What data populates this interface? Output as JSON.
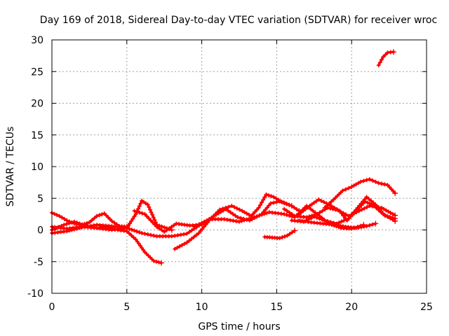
{
  "chart_data": {
    "type": "scatter",
    "title": "Day 169 of 2018, Sidereal Day-to-day VTEC variation (SDTVAR) for receiver wroc",
    "xlabel": "GPS time / hours",
    "ylabel": "SDTVAR / TECUs",
    "xlim": [
      0,
      25
    ],
    "ylim": [
      -10,
      30
    ],
    "xticks": [
      "0",
      "5",
      "10",
      "15",
      "20",
      "25"
    ],
    "yticks": [
      "-10",
      "-5",
      "0",
      "5",
      "10",
      "15",
      "20",
      "25",
      "30"
    ],
    "grid": true,
    "marker": "plus",
    "color": "#ff0000",
    "series": [
      {
        "name": "s1",
        "x": [
          0,
          0.5,
          1,
          1.5,
          2,
          2.5,
          3,
          3.5,
          4,
          4.5,
          5
        ],
        "y": [
          2.7,
          2.2,
          1.5,
          1.0,
          0.8,
          1.2,
          2.2,
          2.6,
          1.4,
          0.6,
          0.5
        ]
      },
      {
        "name": "s2",
        "x": [
          0,
          0.8,
          1.5,
          2.2,
          3,
          3.7,
          4.4,
          5,
          5.6,
          6.2,
          6.8,
          7.3
        ],
        "y": [
          0.0,
          0.8,
          1.3,
          0.7,
          0.3,
          0.5,
          0.0,
          -0.2,
          -1.5,
          -3.5,
          -4.9,
          -5.2
        ]
      },
      {
        "name": "s3",
        "x": [
          0,
          1,
          2,
          3,
          4,
          5,
          5.6,
          6,
          6.4,
          7,
          8
        ],
        "y": [
          -0.5,
          -0.2,
          0.4,
          0.8,
          0.6,
          0.3,
          2.5,
          4.6,
          4.0,
          0.8,
          0.0
        ]
      },
      {
        "name": "s4",
        "x": [
          0,
          1,
          2,
          3,
          4,
          5,
          6,
          7,
          8,
          9,
          10
        ],
        "y": [
          0.5,
          0.2,
          0.5,
          0.3,
          0.0,
          0.3,
          -0.5,
          -1.0,
          -1.0,
          -0.6,
          1.0
        ]
      },
      {
        "name": "s5",
        "x": [
          5.5,
          6.2,
          7,
          7.5,
          8.3,
          9.2,
          10,
          10.8,
          11.6,
          12.4,
          13.2,
          14,
          14.6,
          15.2,
          16
        ],
        "y": [
          3.0,
          2.5,
          0.5,
          -0.3,
          1.0,
          0.7,
          0.8,
          2.2,
          3.3,
          2.0,
          1.5,
          2.5,
          4.2,
          4.5,
          3.8
        ]
      },
      {
        "name": "s6",
        "x": [
          8.2,
          9,
          9.8,
          10.5,
          11.2,
          12,
          12.7,
          13.3,
          13.8,
          14.3,
          14.8,
          15.3,
          16,
          16.5
        ],
        "y": [
          -3.0,
          -2.0,
          -0.5,
          1.5,
          3.2,
          3.8,
          3.0,
          2.2,
          3.5,
          5.6,
          5.2,
          4.5,
          3.8,
          3.0
        ]
      },
      {
        "name": "s7",
        "x": [
          9.5,
          10.5,
          11.5,
          12.5,
          13.5,
          14.5,
          15.5,
          16.2,
          17,
          17.7,
          18.5,
          19.3,
          20,
          20.8
        ],
        "y": [
          0.5,
          1.7,
          1.7,
          1.3,
          2.0,
          2.8,
          2.5,
          2.0,
          3.8,
          2.5,
          1.0,
          0.3,
          0.2,
          0.8
        ]
      },
      {
        "name": "s8",
        "x": [
          14.2,
          14.7,
          15.2,
          15.7,
          16.2
        ],
        "y": [
          -1.1,
          -1.2,
          -1.3,
          -0.9,
          -0.1
        ]
      },
      {
        "name": "s9",
        "x": [
          15.5,
          16.2,
          17,
          17.7,
          18.4,
          19.1,
          19.8,
          20.5,
          21.2,
          22,
          22.9
        ],
        "y": [
          3.3,
          2.2,
          2.0,
          2.5,
          3.5,
          3.1,
          2.2,
          3.0,
          3.8,
          3.5,
          2.3
        ]
      },
      {
        "name": "s10",
        "x": [
          16,
          16.8,
          17.5,
          18.2,
          19,
          19.8,
          20.4,
          21,
          21.6,
          22.2,
          22.9
        ],
        "y": [
          1.5,
          1.3,
          2.1,
          1.5,
          1.0,
          1.8,
          3.5,
          5.2,
          4.0,
          2.3,
          1.8
        ]
      },
      {
        "name": "s11",
        "x": [
          16.5,
          17.2,
          17.8,
          18.5,
          19.2,
          19.7,
          20.3,
          20.9,
          21.5,
          22.1,
          22.9
        ],
        "y": [
          2.5,
          3.8,
          4.8,
          4.0,
          3.0,
          1.5,
          3.0,
          4.5,
          3.8,
          2.5,
          1.4
        ]
      },
      {
        "name": "s12",
        "x": [
          18.2,
          18.8,
          19.4,
          20,
          20.6,
          21.2,
          21.8,
          22.4,
          22.9
        ],
        "y": [
          3.5,
          4.8,
          6.2,
          6.8,
          7.6,
          8.0,
          7.4,
          7.1,
          5.8
        ]
      },
      {
        "name": "s13",
        "x": [
          16.5,
          17.3,
          18.1,
          18.9,
          19.6,
          20.3,
          21,
          21.6
        ],
        "y": [
          1.5,
          1.2,
          1.0,
          0.8,
          0.5,
          0.3,
          0.6,
          1.0
        ]
      },
      {
        "name": "s14",
        "x": [
          21.8,
          22.1,
          22.4,
          22.8
        ],
        "y": [
          26.0,
          27.3,
          28.0,
          28.1
        ]
      }
    ]
  }
}
